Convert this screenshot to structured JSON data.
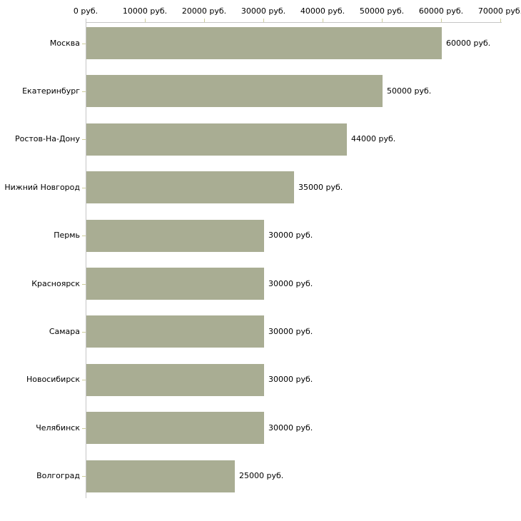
{
  "chart_data": {
    "type": "bar",
    "orientation": "horizontal",
    "title": "",
    "xlabel": "",
    "ylabel": "",
    "grid": false,
    "legend": false,
    "categories": [
      "Москва",
      "Екатеринбург",
      "Ростов-На-Дону",
      "Нижний Новгород",
      "Пермь",
      "Красноярск",
      "Самара",
      "Новосибирск",
      "Челябинск",
      "Волгоград"
    ],
    "values": [
      60000,
      50000,
      44000,
      35000,
      30000,
      30000,
      30000,
      30000,
      30000,
      25000
    ],
    "value_labels": [
      "60000 руб.",
      "50000 руб.",
      "44000 руб.",
      "35000 руб.",
      "30000 руб.",
      "30000 руб.",
      "30000 руб.",
      "30000 руб.",
      "30000 руб.",
      "25000 руб."
    ],
    "x_axis": {
      "position": "top",
      "min": 0,
      "max": 70000,
      "tick_step": 10000,
      "tick_values": [
        0,
        10000,
        20000,
        30000,
        40000,
        50000,
        60000,
        70000
      ],
      "tick_labels": [
        "0 руб.",
        "10000 руб.",
        "20000 руб.",
        "30000 руб.",
        "40000 руб.",
        "50000 руб.",
        "60000 руб.",
        "70000 руб."
      ]
    },
    "colors": {
      "bar_fill": "#a9ad93",
      "axis_line": "#c6c6c6",
      "tick_mark": "#cccc99",
      "text": "#000000",
      "background": "#ffffff"
    }
  }
}
